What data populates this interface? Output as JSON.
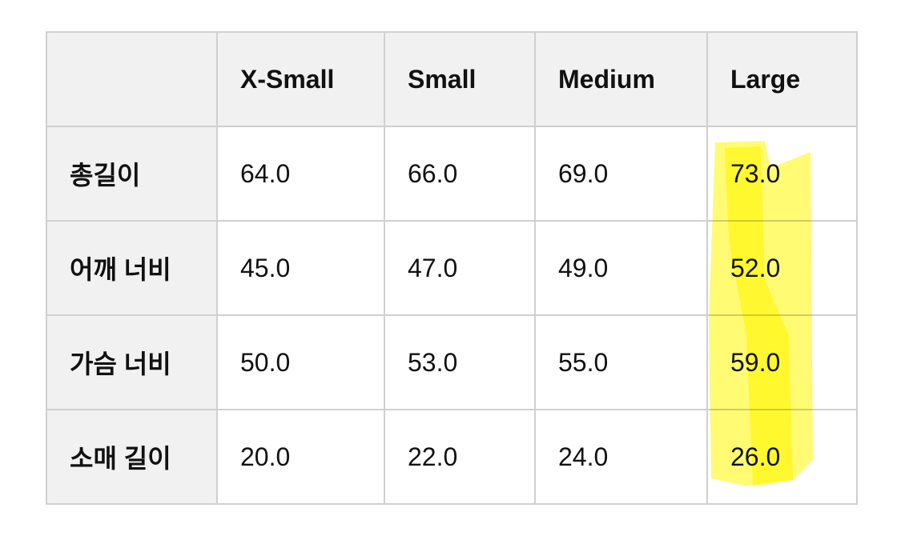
{
  "table": {
    "columns": [
      "",
      "X-Small",
      "Small",
      "Medium",
      "Large"
    ],
    "rows": [
      {
        "label": "총길이",
        "values": [
          "64.0",
          "66.0",
          "69.0",
          "73.0"
        ]
      },
      {
        "label": "어깨 너비",
        "values": [
          "45.0",
          "47.0",
          "49.0",
          "52.0"
        ]
      },
      {
        "label": "가슴 너비",
        "values": [
          "50.0",
          "53.0",
          "55.0",
          "59.0"
        ]
      },
      {
        "label": "소매 길이",
        "values": [
          "20.0",
          "22.0",
          "24.0",
          "26.0"
        ]
      }
    ]
  },
  "highlight": {
    "column": "Large",
    "color": "#fff700"
  }
}
